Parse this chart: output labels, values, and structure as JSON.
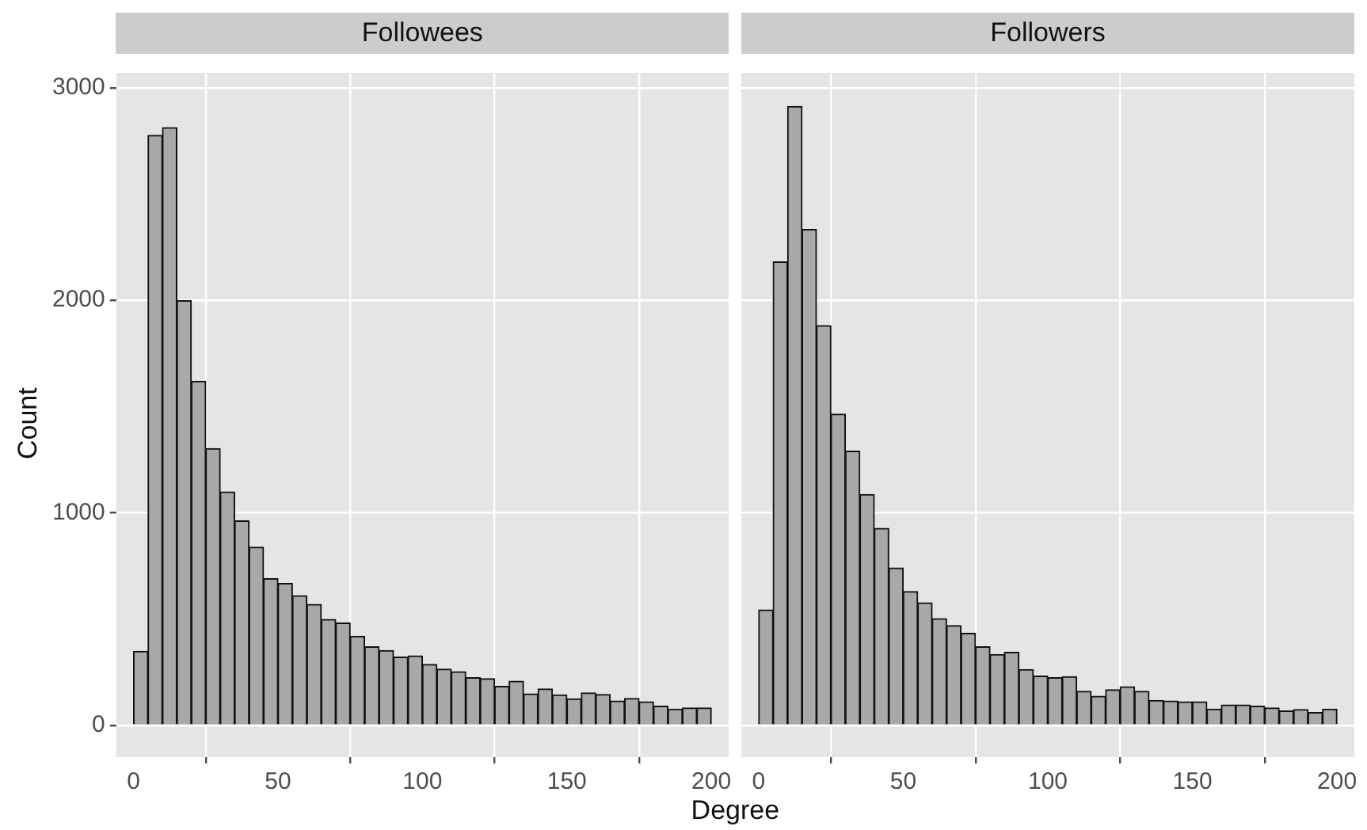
{
  "chart_data": [
    {
      "type": "histogram",
      "title": "Followees",
      "xlabel": "Degree",
      "ylabel": "Count",
      "color": "#a8a8a8",
      "bins": [
        0,
        5,
        10,
        15,
        20,
        25,
        30,
        35,
        40,
        45,
        50,
        55,
        60,
        65,
        70,
        75,
        80,
        85,
        90,
        95,
        100,
        105,
        110,
        115,
        120,
        125,
        130,
        135,
        140,
        145,
        150,
        155,
        160,
        165,
        170,
        175,
        180,
        185,
        190,
        195,
        200
      ],
      "values": [
        348,
        2776,
        2812,
        1998,
        1619,
        1302,
        1098,
        962,
        838,
        690,
        667,
        610,
        569,
        498,
        481,
        419,
        369,
        352,
        321,
        326,
        286,
        264,
        252,
        224,
        219,
        183,
        207,
        148,
        171,
        143,
        124,
        152,
        145,
        114,
        126,
        110,
        90,
        76,
        81,
        81
      ],
      "xlim": [
        -6,
        206
      ],
      "ylim": [
        -150,
        3070
      ],
      "xticks": [
        0,
        50,
        100,
        150,
        200
      ],
      "yticks": [
        0,
        1000,
        2000,
        3000
      ],
      "grid": true
    },
    {
      "type": "histogram",
      "title": "Followers",
      "color": "#a8a8a8",
      "bins": [
        0,
        5,
        10,
        15,
        20,
        25,
        30,
        35,
        40,
        45,
        50,
        55,
        60,
        65,
        70,
        75,
        80,
        85,
        90,
        95,
        100,
        105,
        110,
        115,
        120,
        125,
        130,
        135,
        140,
        145,
        150,
        155,
        160,
        165,
        170,
        175,
        180,
        185,
        190,
        195,
        200
      ],
      "values": [
        543,
        2181,
        2912,
        2333,
        1881,
        1464,
        1290,
        1086,
        926,
        740,
        629,
        576,
        502,
        469,
        433,
        369,
        333,
        343,
        262,
        231,
        224,
        229,
        160,
        136,
        167,
        181,
        160,
        117,
        114,
        110,
        110,
        76,
        95,
        95,
        90,
        81,
        67,
        74,
        60,
        76
      ],
      "xlim": [
        -6,
        206
      ],
      "ylim": [
        -150,
        3070
      ],
      "xticks": [
        0,
        50,
        100,
        150,
        200
      ],
      "yticks": [
        0,
        1000,
        2000,
        3000
      ],
      "grid": true,
      "tick_labels": "x"
    }
  ]
}
